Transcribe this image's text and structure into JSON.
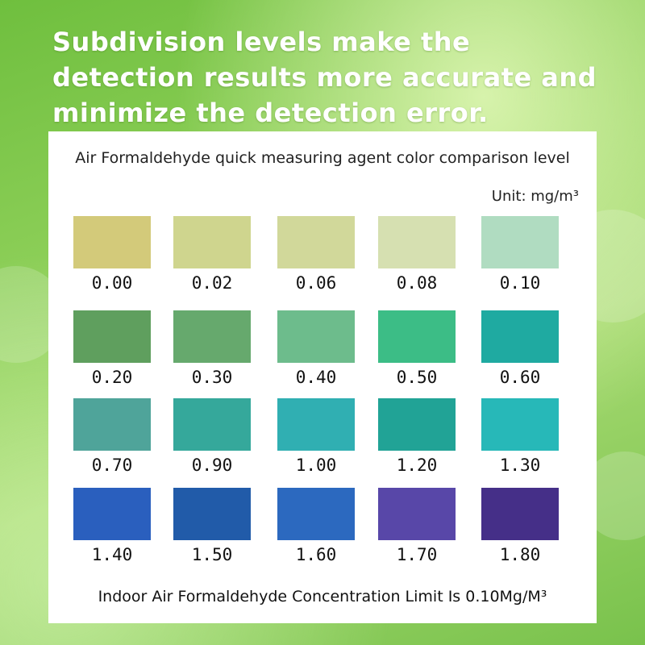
{
  "headline": "Subdivision levels make the detection results more accurate and minimize the detection error.",
  "chart_title": "Air Formaldehyde quick measuring agent color comparison level",
  "unit_label": "Unit: mg/m³",
  "swatches": [
    {
      "value": "0.00",
      "color": "#d3ca7a"
    },
    {
      "value": "0.02",
      "color": "#cfd58e"
    },
    {
      "value": "0.06",
      "color": "#d1d89a"
    },
    {
      "value": "0.08",
      "color": "#d6e0b1"
    },
    {
      "value": "0.10",
      "color": "#b0dcc1"
    },
    {
      "value": "0.20",
      "color": "#5f9f5e"
    },
    {
      "value": "0.30",
      "color": "#66a96d"
    },
    {
      "value": "0.40",
      "color": "#6dbc8c"
    },
    {
      "value": "0.50",
      "color": "#3cbd86"
    },
    {
      "value": "0.60",
      "color": "#1faaa1"
    },
    {
      "value": "0.70",
      "color": "#4fa49a"
    },
    {
      "value": "0.90",
      "color": "#35a89b"
    },
    {
      "value": "1.00",
      "color": "#30afb2"
    },
    {
      "value": "1.20",
      "color": "#21a396"
    },
    {
      "value": "1.30",
      "color": "#27b8b8"
    },
    {
      "value": "1.40",
      "color": "#2a5fbe"
    },
    {
      "value": "1.50",
      "color": "#215ba9"
    },
    {
      "value": "1.60",
      "color": "#2c69bf"
    },
    {
      "value": "1.70",
      "color": "#5847a8"
    },
    {
      "value": "1.80",
      "color": "#452f88"
    }
  ],
  "limit_note": "Indoor Air Formaldehyde Concentration Limit Is 0.10Mg/M³"
}
